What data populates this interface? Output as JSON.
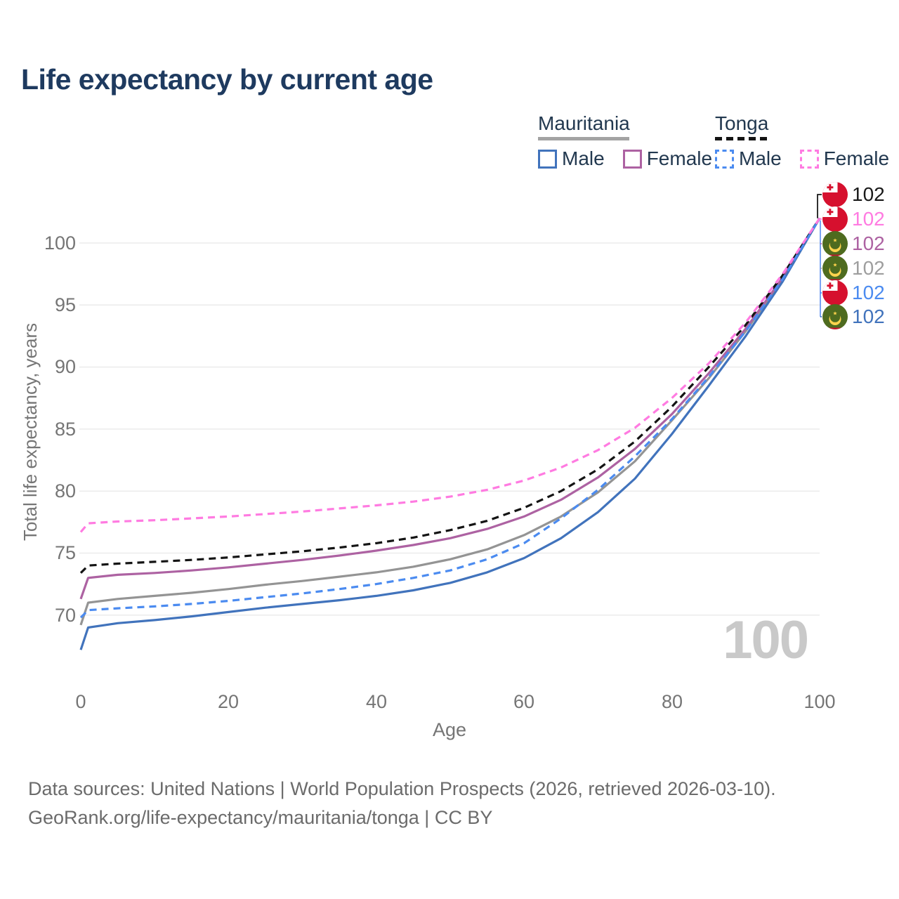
{
  "title": "Life expectancy by current age",
  "colors": {
    "mauritania_male": "#4173bc",
    "mauritania_female": "#ad62a2",
    "mauritania_total": "#949494",
    "tonga_male": "#4b8bf0",
    "tonga_female": "#ff7be1",
    "tonga_total": "#141414",
    "leader_bracket": "#6a99f0",
    "axis_text": "#757575",
    "grid": "#ebebeb",
    "watermark": "#c9c9c9"
  },
  "legend": {
    "groups": [
      {
        "country": "Mauritania",
        "line_style": "solid",
        "items": [
          {
            "label": "Male"
          },
          {
            "label": "Female"
          }
        ]
      },
      {
        "country": "Tonga",
        "line_style": "dashed",
        "items": [
          {
            "label": "Male"
          },
          {
            "label": "Female"
          }
        ]
      }
    ]
  },
  "chart_data": {
    "type": "line",
    "title": "Life expectancy by current age",
    "xlabel": "Age",
    "ylabel": "Total life expectancy, years",
    "x_ticks": [
      0,
      20,
      40,
      60,
      80,
      100
    ],
    "y_ticks_desc": [
      100,
      95,
      90,
      85,
      80,
      75,
      70
    ],
    "xlim": [
      0,
      100
    ],
    "ylim": [
      66,
      103
    ],
    "grid": true,
    "x": [
      0,
      1,
      5,
      10,
      15,
      20,
      25,
      30,
      35,
      40,
      45,
      50,
      55,
      60,
      65,
      70,
      75,
      80,
      85,
      90,
      95,
      100
    ],
    "series": [
      {
        "name": "Mauritania Total",
        "key": "mauritania_total",
        "dashed": false,
        "values": [
          69.2,
          71.0,
          71.3,
          71.55,
          71.8,
          72.1,
          72.45,
          72.75,
          73.1,
          73.45,
          73.9,
          74.5,
          75.3,
          76.45,
          77.95,
          79.9,
          82.4,
          85.7,
          89.1,
          92.9,
          97.1,
          102
        ]
      },
      {
        "name": "Mauritania Female",
        "key": "mauritania_female",
        "dashed": false,
        "values": [
          71.3,
          73.0,
          73.25,
          73.4,
          73.6,
          73.85,
          74.15,
          74.45,
          74.8,
          75.2,
          75.65,
          76.2,
          76.95,
          77.95,
          79.3,
          81.1,
          83.4,
          86.2,
          89.5,
          93.1,
          97.2,
          102
        ]
      },
      {
        "name": "Mauritania Male",
        "key": "mauritania_male",
        "dashed": false,
        "values": [
          67.2,
          69.0,
          69.35,
          69.6,
          69.9,
          70.25,
          70.6,
          70.9,
          71.2,
          71.55,
          72.0,
          72.6,
          73.45,
          74.6,
          76.2,
          78.3,
          81.0,
          84.6,
          88.5,
          92.5,
          96.9,
          102
        ]
      },
      {
        "name": "Tonga Total",
        "key": "tonga_total",
        "dashed": true,
        "values": [
          73.4,
          74.0,
          74.15,
          74.3,
          74.45,
          74.65,
          74.9,
          75.15,
          75.45,
          75.8,
          76.25,
          76.85,
          77.6,
          78.65,
          80.0,
          81.75,
          84.0,
          86.8,
          90.0,
          93.4,
          97.4,
          102
        ]
      },
      {
        "name": "Tonga Male",
        "key": "tonga_male",
        "dashed": true,
        "values": [
          69.8,
          70.4,
          70.55,
          70.7,
          70.9,
          71.15,
          71.45,
          71.75,
          72.1,
          72.5,
          73.0,
          73.6,
          74.5,
          75.8,
          77.8,
          80.1,
          82.8,
          85.8,
          89.2,
          92.9,
          97.1,
          102
        ]
      },
      {
        "name": "Tonga Female",
        "key": "tonga_female",
        "dashed": true,
        "values": [
          76.7,
          77.4,
          77.55,
          77.65,
          77.8,
          77.95,
          78.15,
          78.35,
          78.6,
          78.85,
          79.15,
          79.55,
          80.1,
          80.85,
          81.9,
          83.3,
          85.1,
          87.5,
          90.3,
          93.6,
          97.5,
          102
        ]
      }
    ]
  },
  "end_labels": [
    {
      "flag": "tonga",
      "series": "Tonga Total",
      "value": "102",
      "color": "#1a1a1a"
    },
    {
      "flag": "tonga",
      "series": "Tonga Female",
      "value": "102",
      "color": "#ff7be1"
    },
    {
      "flag": "mauritania",
      "series": "Mauritania Female",
      "value": "102",
      "color": "#ad62a2"
    },
    {
      "flag": "mauritania",
      "series": "Mauritania Total",
      "value": "102",
      "color": "#9e9e9e"
    },
    {
      "flag": "tonga",
      "series": "Tonga Male",
      "value": "102",
      "color": "#4b8bf0"
    },
    {
      "flag": "mauritania",
      "series": "Mauritania Male",
      "value": "102",
      "color": "#4173bc"
    }
  ],
  "watermark": "100",
  "footer": {
    "line1": "Data sources: United Nations | World Population Prospects (2026, retrieved 2026-03-10).",
    "line2": "GeoRank.org/life-expectancy/mauritania/tonga | CC BY"
  }
}
